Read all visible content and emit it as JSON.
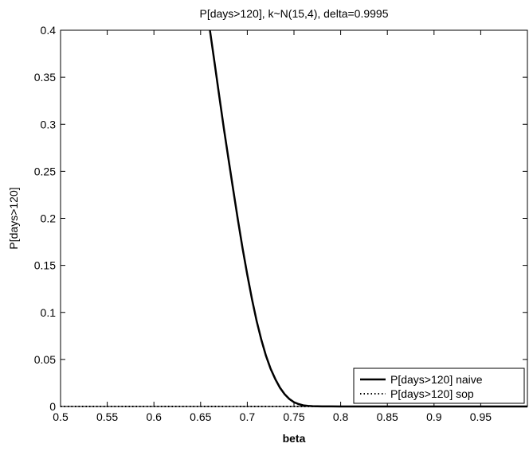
{
  "chart_data": {
    "type": "line",
    "title": "P[days>120], k~N(15,4), delta=0.9995",
    "xlabel": "beta",
    "ylabel": "P[days>120]",
    "xlim": [
      0.5,
      1.0
    ],
    "ylim": [
      0,
      0.4
    ],
    "xticks": [
      "0.5",
      "0.55",
      "0.6",
      "0.65",
      "0.7",
      "0.75",
      "0.8",
      "0.85",
      "0.9",
      "0.95"
    ],
    "yticks": [
      "0",
      "0.05",
      "0.1",
      "0.15",
      "0.2",
      "0.25",
      "0.3",
      "0.35",
      "0.4"
    ],
    "grid": false,
    "legend_position": "bottom-right",
    "series": [
      {
        "name": "P[days>120] naive",
        "style": "solid",
        "color": "#000000",
        "x": [
          0.66,
          0.665,
          0.67,
          0.675,
          0.68,
          0.685,
          0.69,
          0.695,
          0.7,
          0.705,
          0.71,
          0.715,
          0.72,
          0.725,
          0.73,
          0.735,
          0.74,
          0.745,
          0.75,
          0.755,
          0.76,
          0.765,
          0.77,
          0.78,
          0.79,
          0.8,
          0.85,
          0.9,
          0.95,
          1.0
        ],
        "values": [
          0.4,
          0.365,
          0.33,
          0.295,
          0.262,
          0.23,
          0.198,
          0.168,
          0.14,
          0.114,
          0.091,
          0.071,
          0.054,
          0.04,
          0.029,
          0.02,
          0.013,
          0.008,
          0.0045,
          0.0025,
          0.0012,
          0.0006,
          0.0003,
          0.0001,
          5e-05,
          0.0,
          0.0,
          0.0,
          0.0,
          0.0
        ]
      },
      {
        "name": "P[days>120] sop",
        "style": "dotted",
        "color": "#000000",
        "x": [
          0.5,
          0.6,
          0.7,
          0.8,
          0.9,
          1.0
        ],
        "values": [
          0.0,
          0.0,
          0.0,
          0.0,
          0.0,
          0.0
        ]
      }
    ]
  }
}
